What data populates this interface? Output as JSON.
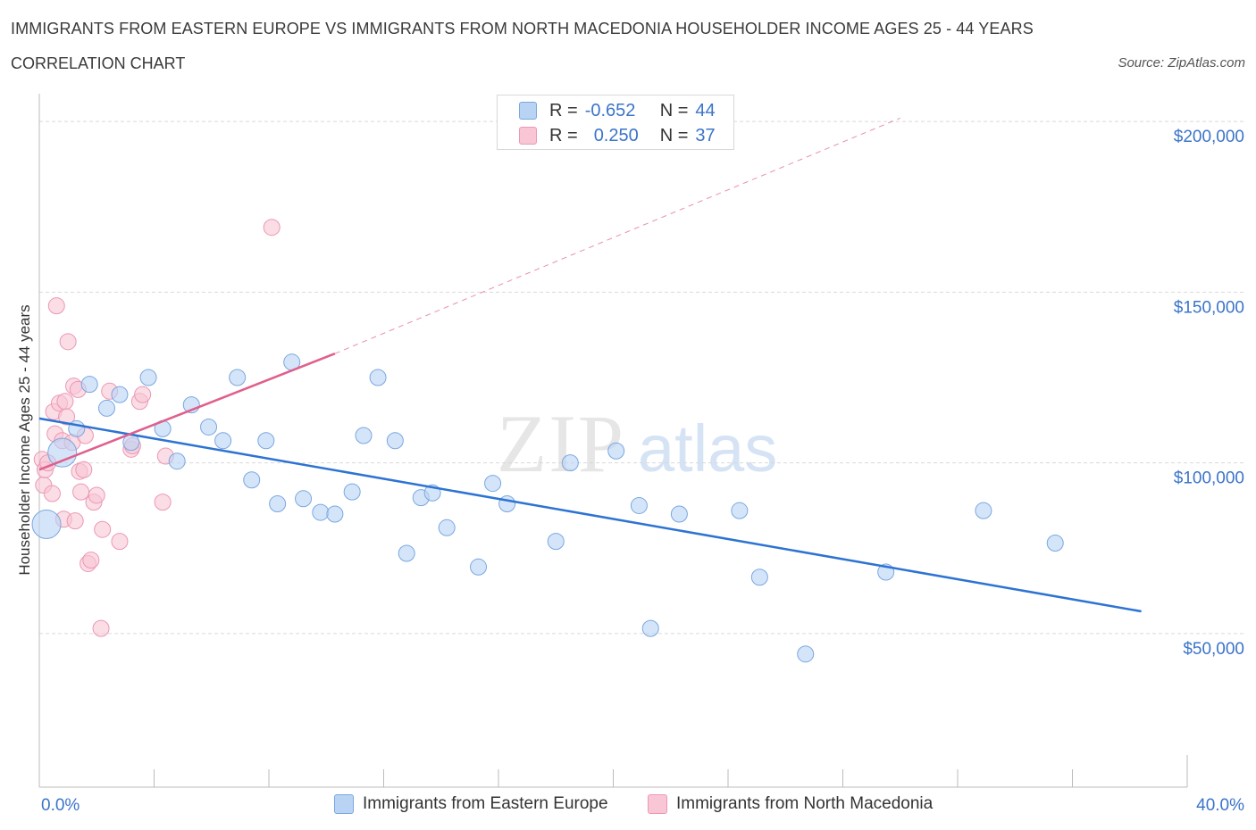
{
  "header": {
    "title": "IMMIGRANTS FROM EASTERN EUROPE VS IMMIGRANTS FROM NORTH MACEDONIA HOUSEHOLDER INCOME AGES 25 - 44 YEARS",
    "subtitle": "CORRELATION CHART",
    "source": "Source: ZipAtlas.com"
  },
  "legend": {
    "r_label": "R =",
    "n_label": "N =",
    "rows": [
      {
        "r": "-0.652",
        "n": "44"
      },
      {
        "r": "0.250",
        "n": "37"
      }
    ]
  },
  "colors": {
    "blue_fill": "#b9d3f5",
    "blue_stroke": "#7aa7e0",
    "blue_line": "#2d73d2",
    "pink_fill": "#f9c6d6",
    "pink_stroke": "#ec97b3",
    "pink_line": "#e05f8c",
    "tick_text": "#3b74c9",
    "grid": "#d9d9d9"
  },
  "chart_data": {
    "type": "scatter",
    "title": "IMMIGRANTS FROM EASTERN EUROPE VS IMMIGRANTS FROM NORTH MACEDONIA HOUSEHOLDER INCOME AGES 25 - 44 YEARS",
    "xlabel": "",
    "ylabel": "Householder Income Ages 25 - 44 years",
    "xlim": [
      0,
      40
    ],
    "ylim": [
      5000,
      205000
    ],
    "x_tick_labels": [
      {
        "value": 0,
        "label": "0.0%"
      },
      {
        "value": 40,
        "label": "40.0%"
      }
    ],
    "y_tick_labels": [
      {
        "value": 50000,
        "label": "$50,000"
      },
      {
        "value": 100000,
        "label": "$100,000"
      },
      {
        "value": 150000,
        "label": "$150,000"
      },
      {
        "value": 200000,
        "label": "$200,000"
      }
    ],
    "grid": true,
    "legend_position": "top-center",
    "watermark": "ZIPatlas",
    "series": [
      {
        "name": "Immigrants from Eastern Europe",
        "color": "#b9d3f5",
        "trend": {
          "x": [
            0.0,
            38.4
          ],
          "y": [
            113000,
            56500
          ],
          "style": "solid"
        },
        "points": [
          {
            "x": 0.25,
            "y": 82000,
            "big": true
          },
          {
            "x": 0.8,
            "y": 103000,
            "big": true
          },
          {
            "x": 1.3,
            "y": 110000
          },
          {
            "x": 1.75,
            "y": 123000
          },
          {
            "x": 2.35,
            "y": 116000
          },
          {
            "x": 2.8,
            "y": 120000
          },
          {
            "x": 3.2,
            "y": 106000
          },
          {
            "x": 3.8,
            "y": 125000
          },
          {
            "x": 4.3,
            "y": 110000
          },
          {
            "x": 4.8,
            "y": 100500
          },
          {
            "x": 5.3,
            "y": 117000
          },
          {
            "x": 5.9,
            "y": 110500
          },
          {
            "x": 6.4,
            "y": 106500
          },
          {
            "x": 6.9,
            "y": 125000
          },
          {
            "x": 7.4,
            "y": 95000
          },
          {
            "x": 7.9,
            "y": 106500
          },
          {
            "x": 8.3,
            "y": 88000
          },
          {
            "x": 8.8,
            "y": 129500
          },
          {
            "x": 9.2,
            "y": 89500
          },
          {
            "x": 9.8,
            "y": 85500
          },
          {
            "x": 10.3,
            "y": 85000
          },
          {
            "x": 10.9,
            "y": 91500
          },
          {
            "x": 11.3,
            "y": 108000
          },
          {
            "x": 11.8,
            "y": 125000
          },
          {
            "x": 12.4,
            "y": 106500
          },
          {
            "x": 12.8,
            "y": 73500
          },
          {
            "x": 13.3,
            "y": 89800
          },
          {
            "x": 13.7,
            "y": 91200
          },
          {
            "x": 14.2,
            "y": 81000
          },
          {
            "x": 15.3,
            "y": 69500
          },
          {
            "x": 15.8,
            "y": 94000
          },
          {
            "x": 16.3,
            "y": 88000
          },
          {
            "x": 18.0,
            "y": 77000
          },
          {
            "x": 18.5,
            "y": 100000
          },
          {
            "x": 20.1,
            "y": 103500
          },
          {
            "x": 20.9,
            "y": 87500
          },
          {
            "x": 21.3,
            "y": 51500
          },
          {
            "x": 22.3,
            "y": 85000
          },
          {
            "x": 24.4,
            "y": 86000
          },
          {
            "x": 25.1,
            "y": 66500
          },
          {
            "x": 26.7,
            "y": 44000
          },
          {
            "x": 29.5,
            "y": 68000
          },
          {
            "x": 32.9,
            "y": 86000
          },
          {
            "x": 35.4,
            "y": 76500
          }
        ]
      },
      {
        "name": "Immigrants from North Macedonia",
        "color": "#f9c6d6",
        "trend": {
          "x": [
            0.0,
            10.3
          ],
          "y": [
            98000,
            132000
          ],
          "style": "solid",
          "extension": {
            "x": [
              10.3,
              30.0
            ],
            "y": [
              132000,
              201000
            ],
            "style": "dashed"
          }
        },
        "points": [
          {
            "x": 0.1,
            "y": 101000
          },
          {
            "x": 0.15,
            "y": 93500
          },
          {
            "x": 0.2,
            "y": 98000
          },
          {
            "x": 0.3,
            "y": 100000
          },
          {
            "x": 0.45,
            "y": 91000
          },
          {
            "x": 0.5,
            "y": 115000
          },
          {
            "x": 0.55,
            "y": 108500
          },
          {
            "x": 0.6,
            "y": 146000
          },
          {
            "x": 0.7,
            "y": 117500
          },
          {
            "x": 0.8,
            "y": 106500
          },
          {
            "x": 0.85,
            "y": 83500
          },
          {
            "x": 0.9,
            "y": 118000
          },
          {
            "x": 0.95,
            "y": 113500
          },
          {
            "x": 1.0,
            "y": 135500
          },
          {
            "x": 1.15,
            "y": 106000
          },
          {
            "x": 1.2,
            "y": 122500
          },
          {
            "x": 1.25,
            "y": 83000
          },
          {
            "x": 1.35,
            "y": 121500
          },
          {
            "x": 1.4,
            "y": 97500
          },
          {
            "x": 1.45,
            "y": 91500
          },
          {
            "x": 1.55,
            "y": 98000
          },
          {
            "x": 1.6,
            "y": 108000
          },
          {
            "x": 1.7,
            "y": 70500
          },
          {
            "x": 1.8,
            "y": 71500
          },
          {
            "x": 1.9,
            "y": 88500
          },
          {
            "x": 2.0,
            "y": 90500
          },
          {
            "x": 2.15,
            "y": 51500
          },
          {
            "x": 2.2,
            "y": 80500
          },
          {
            "x": 2.45,
            "y": 121000
          },
          {
            "x": 2.8,
            "y": 77000
          },
          {
            "x": 3.2,
            "y": 104000
          },
          {
            "x": 3.5,
            "y": 118000
          },
          {
            "x": 3.6,
            "y": 120000
          },
          {
            "x": 4.3,
            "y": 88500
          },
          {
            "x": 4.4,
            "y": 102000
          },
          {
            "x": 8.1,
            "y": 169000
          },
          {
            "x": 3.25,
            "y": 105000
          }
        ]
      }
    ]
  },
  "bottom_legend": {
    "items": [
      {
        "label": "Immigrants from Eastern Europe"
      },
      {
        "label": "Immigrants from North Macedonia"
      }
    ]
  }
}
